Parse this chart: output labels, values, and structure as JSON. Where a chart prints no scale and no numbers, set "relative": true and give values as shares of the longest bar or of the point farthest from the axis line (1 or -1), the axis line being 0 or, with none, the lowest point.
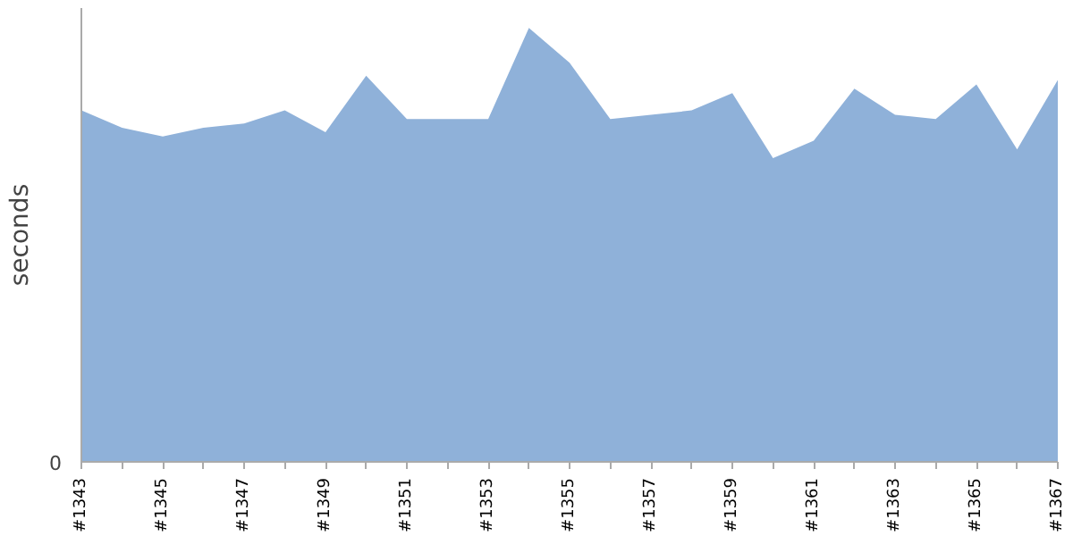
{
  "chart_data": {
    "type": "area",
    "ylabel": "seconds",
    "relative": true,
    "grid": false,
    "categories": [
      "#1343",
      null,
      "#1345",
      null,
      "#1347",
      null,
      "#1349",
      null,
      "#1351",
      null,
      "#1353",
      null,
      "#1355",
      null,
      "#1357",
      null,
      "#1359",
      null,
      "#1361",
      null,
      "#1363",
      null,
      "#1365",
      null,
      "#1367"
    ],
    "values": [
      0.81,
      0.77,
      0.75,
      0.77,
      0.78,
      0.81,
      0.76,
      0.89,
      0.79,
      0.79,
      0.79,
      1,
      0.92,
      0.79,
      0.8,
      0.81,
      0.85,
      0.7,
      0.74,
      0.86,
      0.8,
      0.79,
      0.87,
      0.72,
      0.88
    ],
    "color": "#8fb1d9",
    "annotations": [
      "0"
    ]
  }
}
